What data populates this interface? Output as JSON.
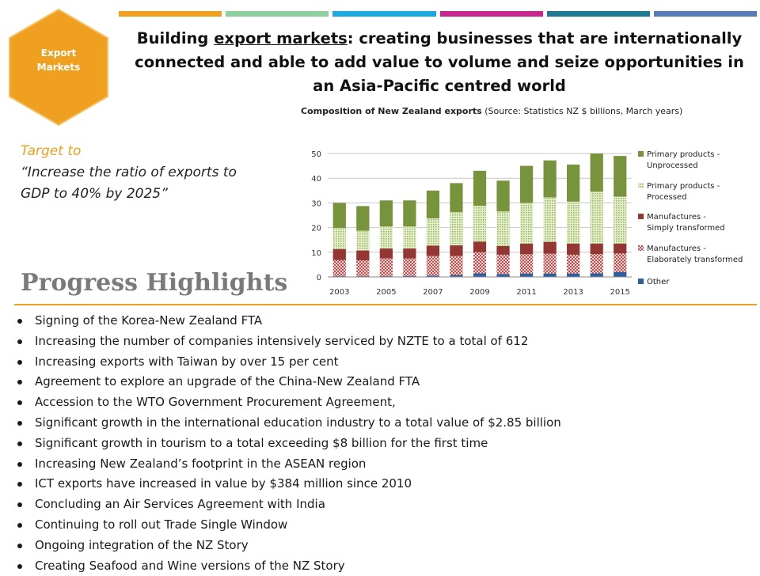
{
  "badge": {
    "line1": "Export",
    "line2": "Markets",
    "color": "#f0a020"
  },
  "topbar_colors": [
    "#f0a020",
    "#8ed0a0",
    "#1ca8e0",
    "#c8288e",
    "#1e7890",
    "#5a7ab8"
  ],
  "headline": {
    "before": "Building ",
    "underlined": "export markets",
    "after": ": creating businesses that are internationally connected and able to add value to volume and seize opportunities in an Asia-Pacific centred world"
  },
  "chart_title": {
    "bold": "Composition of New Zealand exports",
    "rest": " (Source: Statistics NZ $ billions, March years)"
  },
  "target": {
    "line1": "Target to",
    "quote": "“Increase the ratio of exports to GDP to 40% by 2025”"
  },
  "progress_heading": "Progress Highlights",
  "bullets": [
    "Signing of the Korea-New Zealand FTA",
    "Increasing the number of companies intensively serviced by NZTE to a total of 612",
    "Increasing exports with Taiwan by over 15 per cent",
    "Agreement to explore an upgrade of the China-New Zealand FTA",
    "Accession to the WTO Government Procurement Agreement,",
    "Significant growth in the international education industry to a total value of $2.85 billion",
    "Significant growth in tourism to a total exceeding $8 billion for the first time",
    "Increasing New Zealand’s footprint in the ASEAN region",
    "ICT exports have increased in value by $384 million since 2010",
    "Concluding an Air Services Agreement with India",
    "Continuing to roll out Trade Single Window",
    "Ongoing integration of the NZ Story",
    "Creating Seafood and Wine versions of the NZ Story"
  ],
  "chart_data": {
    "type": "bar",
    "stacked": true,
    "categories": [
      "2003",
      "2004",
      "2005",
      "2006",
      "2007",
      "2008",
      "2009",
      "2010",
      "2011",
      "2012",
      "2013",
      "2014",
      "2015"
    ],
    "x_tick_labels": [
      "2003",
      "2005",
      "2007",
      "2009",
      "2011",
      "2013",
      "2015"
    ],
    "ylim": [
      0,
      50
    ],
    "yticks": [
      0,
      10,
      20,
      30,
      40,
      50
    ],
    "grid": true,
    "legend_position": "right",
    "series": [
      {
        "name": "Other",
        "color": "#2e5f9a",
        "pattern": "solid",
        "values": [
          0.3,
          0.3,
          0.3,
          0.4,
          0.5,
          0.8,
          1.5,
          1.2,
          1.4,
          1.4,
          1.4,
          1.5,
          2.0
        ]
      },
      {
        "name": "Manufactures - Elaborately transformed",
        "color": "#c0504d",
        "pattern": "checker",
        "values": [
          6.5,
          6.4,
          7.2,
          7.1,
          8.0,
          7.7,
          8.5,
          7.8,
          7.8,
          8.0,
          7.6,
          7.8,
          7.5
        ]
      },
      {
        "name": "Manufactures - Simply transformed",
        "color": "#943634",
        "pattern": "solid",
        "values": [
          4.5,
          4.0,
          4.0,
          4.0,
          4.2,
          4.3,
          4.3,
          3.5,
          4.3,
          4.8,
          4.5,
          4.2,
          4.0
        ]
      },
      {
        "name": "Primary products - Processed",
        "color": "#9bbb59",
        "pattern": "dots",
        "values": [
          8.5,
          8.0,
          9.0,
          9.0,
          11.0,
          13.5,
          14.5,
          14.0,
          16.5,
          18.0,
          17.0,
          21.0,
          19.0
        ]
      },
      {
        "name": "Primary products - Unprocessed",
        "color": "#77933c",
        "pattern": "solid",
        "values": [
          10.2,
          10.0,
          10.5,
          10.5,
          11.3,
          11.7,
          14.2,
          12.5,
          15.0,
          15.0,
          15.0,
          15.5,
          16.5
        ]
      }
    ],
    "legend_order": [
      {
        "line1": "Primary products -",
        "line2": "Unprocessed",
        "series": 4
      },
      {
        "line1": "Primary products -",
        "line2": "Processed",
        "series": 3
      },
      {
        "line1": "Manufactures -",
        "line2": "Simply transformed",
        "series": 2
      },
      {
        "line1": "Manufactures -",
        "line2": "Elaborately transformed",
        "series": 1
      },
      {
        "line1": "Other",
        "line2": "",
        "series": 0
      }
    ]
  }
}
